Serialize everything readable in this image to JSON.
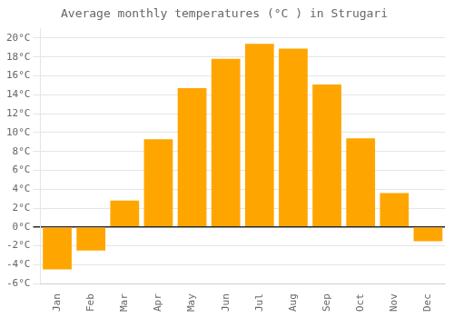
{
  "chart_data": {
    "type": "bar",
    "title": "Average monthly temperatures (°C ) in Strugari",
    "categories": [
      "Jan",
      "Feb",
      "Mar",
      "Apr",
      "May",
      "Jun",
      "Jul",
      "Aug",
      "Sep",
      "Oct",
      "Nov",
      "Dec"
    ],
    "values": [
      -4.5,
      -2.5,
      2.8,
      9.3,
      14.7,
      17.8,
      19.4,
      18.9,
      15.1,
      9.4,
      3.6,
      -1.5
    ],
    "color": "#FFA500",
    "ylim": [
      -6,
      21
    ],
    "yticks": [
      {
        "value": -6,
        "label": "-6°C"
      },
      {
        "value": -4,
        "label": "-4°C"
      },
      {
        "value": -2,
        "label": "-2°C"
      },
      {
        "value": 0,
        "label": "0°C"
      },
      {
        "value": 2,
        "label": "2°C"
      },
      {
        "value": 4,
        "label": "4°C"
      },
      {
        "value": 6,
        "label": "6°C"
      },
      {
        "value": 8,
        "label": "8°C"
      },
      {
        "value": 10,
        "label": "10°C"
      },
      {
        "value": 12,
        "label": "12°C"
      },
      {
        "value": 14,
        "label": "14°C"
      },
      {
        "value": 16,
        "label": "16°C"
      },
      {
        "value": 18,
        "label": "18°C"
      },
      {
        "value": 20,
        "label": "20°C"
      }
    ],
    "grid": true
  }
}
